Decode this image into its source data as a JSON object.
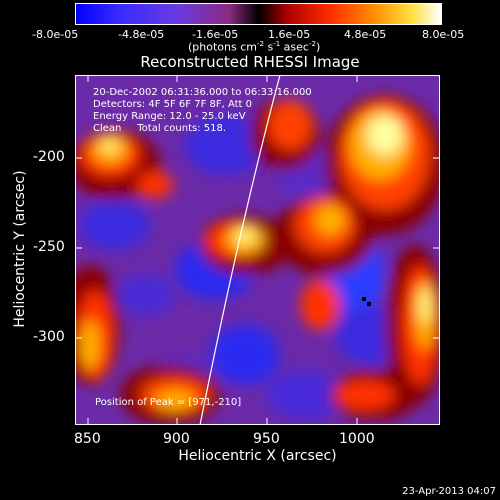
{
  "colorbar": {
    "ticks": [
      "-8.0e-05",
      "-4.8e-05",
      "-1.6e-05",
      "1.6e-05",
      "4.8e-05",
      "8.0e-05"
    ],
    "units_prefix": "(photons cm",
    "units_exp1": "-2",
    "units_mid": " s",
    "units_exp2": "-1",
    "units_mid2": " asec",
    "units_exp3": "-2",
    "units_suffix": ")"
  },
  "plot": {
    "title": "Reconstructed RHESSI Image",
    "xlabel": "Heliocentric X (arcsec)",
    "ylabel": "Heliocentric Y (arcsec)",
    "xticks": [
      "850",
      "900",
      "950",
      "1000"
    ],
    "yticks": [
      "-200",
      "-250",
      "-300"
    ],
    "info_lines": [
      "20-Dec-2002 06:31:36.000 to 06:33:16.000",
      "Detectors: 4F 5F 6F 7F 8F, Att 0",
      "Energy Range: 12.0 - 25.0 keV",
      "Clean     Total counts: 518."
    ],
    "peak_label": "Position of Peak = [971,-210]"
  },
  "footer": {
    "timestamp": "23-Apr-2013 04:07"
  },
  "colors": {
    "background": "#000000",
    "foreground": "#ffffff",
    "colormap": [
      "#0000ff",
      "#5a1fd6",
      "#7a2ab8",
      "#cc0000",
      "#ff4000",
      "#ffb000",
      "#ffff80",
      "#ffffff"
    ]
  }
}
